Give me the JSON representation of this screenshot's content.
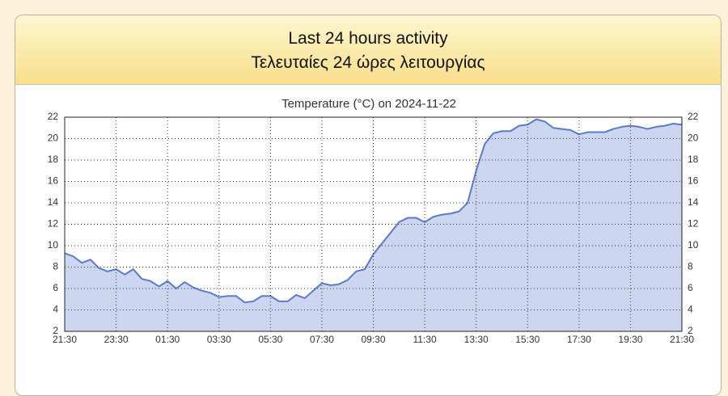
{
  "header": {
    "lines": [
      "Last 24 hours activity",
      "Τελευταίες 24 ώρες λειτουργίας"
    ]
  },
  "chart_data": {
    "type": "area",
    "title": "Temperature (°C) on 2024-11-22",
    "x": [
      "21:30",
      "21:50",
      "22:10",
      "22:30",
      "22:50",
      "23:10",
      "23:30",
      "23:50",
      "00:10",
      "00:30",
      "00:50",
      "01:10",
      "01:30",
      "01:50",
      "02:10",
      "02:30",
      "02:50",
      "03:10",
      "03:30",
      "03:50",
      "04:10",
      "04:30",
      "04:50",
      "05:10",
      "05:30",
      "05:50",
      "06:10",
      "06:30",
      "06:50",
      "07:10",
      "07:30",
      "07:50",
      "08:10",
      "08:30",
      "08:50",
      "09:10",
      "09:30",
      "09:50",
      "10:10",
      "10:30",
      "10:50",
      "11:10",
      "11:30",
      "11:50",
      "12:10",
      "12:30",
      "12:50",
      "13:10",
      "13:30",
      "13:50",
      "14:10",
      "14:30",
      "14:50",
      "15:10",
      "15:30",
      "15:50",
      "16:10",
      "16:30",
      "16:50",
      "17:10",
      "17:30",
      "17:50",
      "18:10",
      "18:30",
      "18:50",
      "19:10",
      "19:30",
      "19:50",
      "20:10",
      "20:30",
      "20:50",
      "21:10",
      "21:30"
    ],
    "values": [
      9.3,
      9.0,
      8.4,
      8.7,
      7.9,
      7.6,
      7.8,
      7.3,
      7.8,
      6.9,
      6.7,
      6.2,
      6.7,
      6.0,
      6.6,
      6.1,
      5.8,
      5.6,
      5.2,
      5.3,
      5.3,
      4.7,
      4.8,
      5.3,
      5.3,
      4.8,
      4.8,
      5.4,
      5.1,
      5.8,
      6.5,
      6.3,
      6.4,
      6.8,
      7.6,
      7.8,
      9.2,
      10.2,
      11.2,
      12.2,
      12.6,
      12.6,
      12.2,
      12.7,
      12.9,
      13.0,
      13.2,
      14.0,
      17.0,
      19.5,
      20.5,
      20.7,
      20.7,
      21.2,
      21.3,
      21.8,
      21.6,
      21.0,
      20.9,
      20.8,
      20.4,
      20.6,
      20.6,
      20.6,
      20.9,
      21.1,
      21.2,
      21.1,
      20.9,
      21.1,
      21.2,
      21.4,
      21.3
    ],
    "color": "#5b7bc8",
    "fill_color": "#ccd6f0",
    "xlim": [
      "21:30",
      "21:30"
    ],
    "xticks": [
      "21:30",
      "23:30",
      "01:30",
      "03:30",
      "05:30",
      "07:30",
      "09:30",
      "11:30",
      "13:30",
      "15:30",
      "17:30",
      "19:30",
      "21:30"
    ],
    "ylim": [
      2,
      22
    ],
    "yticks": [
      2,
      4,
      6,
      8,
      10,
      12,
      14,
      16,
      18,
      20,
      22
    ],
    "grid": true,
    "right_axis": true
  }
}
